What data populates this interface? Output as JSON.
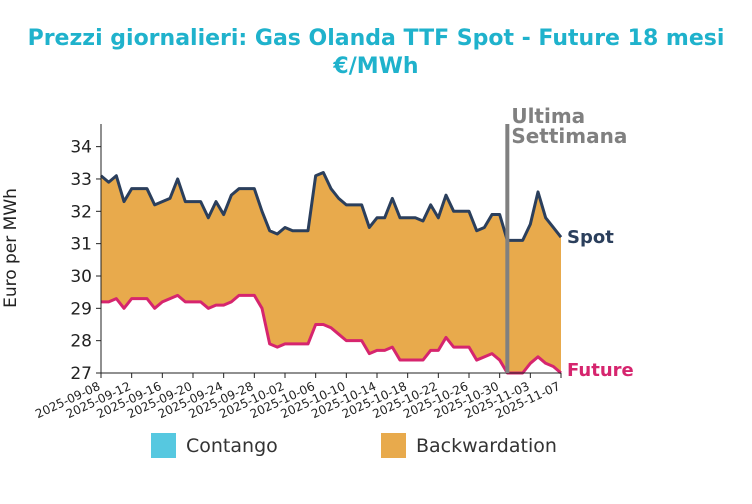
{
  "colors": {
    "title": "#1fb2cc",
    "spot": "#2b3f5c",
    "future": "#d6256e",
    "contango": "#56c8e0",
    "backwardation": "#e8aa4c",
    "annotation": "#808080"
  },
  "chart_data": {
    "type": "area",
    "title": "Prezzi giornalieri: Gas Olanda TTF Spot - Future 18 mesi",
    "subtitle": "€/MWh",
    "ylabel": "Euro per MWh",
    "xlabel": "",
    "ylim": [
      27,
      34.7
    ],
    "yticks": [
      "27",
      "28",
      "29",
      "30",
      "31",
      "32",
      "33",
      "34"
    ],
    "xticks": [
      "2025-09-08",
      "2025-09-12",
      "2025-09-16",
      "2025-09-20",
      "2025-09-24",
      "2025-09-28",
      "2025-10-02",
      "2025-10-06",
      "2025-10-10",
      "2025-10-14",
      "2025-10-18",
      "2025-10-22",
      "2025-10-26",
      "2025-10-30",
      "2025-11-03",
      "2025-11-07"
    ],
    "x": [
      "2025-09-08",
      "2025-09-09",
      "2025-09-10",
      "2025-09-11",
      "2025-09-12",
      "2025-09-13",
      "2025-09-14",
      "2025-09-15",
      "2025-09-16",
      "2025-09-17",
      "2025-09-18",
      "2025-09-19",
      "2025-09-20",
      "2025-09-21",
      "2025-09-22",
      "2025-09-23",
      "2025-09-24",
      "2025-09-25",
      "2025-09-26",
      "2025-09-27",
      "2025-09-28",
      "2025-09-29",
      "2025-09-30",
      "2025-10-01",
      "2025-10-02",
      "2025-10-03",
      "2025-10-04",
      "2025-10-05",
      "2025-10-06",
      "2025-10-07",
      "2025-10-08",
      "2025-10-09",
      "2025-10-10",
      "2025-10-11",
      "2025-10-12",
      "2025-10-13",
      "2025-10-14",
      "2025-10-15",
      "2025-10-16",
      "2025-10-17",
      "2025-10-18",
      "2025-10-19",
      "2025-10-20",
      "2025-10-21",
      "2025-10-22",
      "2025-10-23",
      "2025-10-24",
      "2025-10-25",
      "2025-10-26",
      "2025-10-27",
      "2025-10-28",
      "2025-10-29",
      "2025-10-30",
      "2025-10-31",
      "2025-11-01",
      "2025-11-02",
      "2025-11-03",
      "2025-11-04",
      "2025-11-05",
      "2025-11-06",
      "2025-11-07"
    ],
    "series": [
      {
        "name": "Spot",
        "values": [
          33.1,
          32.9,
          33.1,
          32.3,
          32.7,
          32.7,
          32.7,
          32.2,
          32.3,
          32.4,
          33.0,
          32.3,
          32.3,
          32.3,
          31.8,
          32.3,
          31.9,
          32.5,
          32.7,
          32.7,
          32.7,
          32.0,
          31.4,
          31.3,
          31.5,
          31.4,
          31.4,
          31.4,
          33.1,
          33.2,
          32.7,
          32.4,
          32.2,
          32.2,
          32.2,
          31.5,
          31.8,
          31.8,
          32.4,
          31.8,
          31.8,
          31.8,
          31.7,
          32.2,
          31.8,
          32.5,
          32.0,
          32.0,
          32.0,
          31.4,
          31.5,
          31.9,
          31.9,
          31.1,
          31.1,
          31.1,
          31.6,
          32.6,
          31.8,
          31.5,
          31.2
        ]
      },
      {
        "name": "Future",
        "values": [
          29.2,
          29.2,
          29.3,
          29.0,
          29.3,
          29.3,
          29.3,
          29.0,
          29.2,
          29.3,
          29.4,
          29.2,
          29.2,
          29.2,
          29.0,
          29.1,
          29.1,
          29.2,
          29.4,
          29.4,
          29.4,
          29.0,
          27.9,
          27.8,
          27.9,
          27.9,
          27.9,
          27.9,
          28.5,
          28.5,
          28.4,
          28.2,
          28.0,
          28.0,
          28.0,
          27.6,
          27.7,
          27.7,
          27.8,
          27.4,
          27.4,
          27.4,
          27.4,
          27.7,
          27.7,
          28.1,
          27.8,
          27.8,
          27.8,
          27.4,
          27.5,
          27.6,
          27.4,
          27.0,
          27.0,
          27.0,
          27.3,
          27.5,
          27.3,
          27.2,
          27.0
        ]
      }
    ],
    "fill_between": {
      "description_legend": [
        "Contango",
        "Backwardation"
      ]
    },
    "annotation": {
      "date": "2025-10-31",
      "label_line1": "Ultima",
      "label_line2": "Settimana"
    },
    "legend": {
      "placement": "bottom",
      "items": [
        "Contango",
        "Backwardation"
      ]
    }
  }
}
